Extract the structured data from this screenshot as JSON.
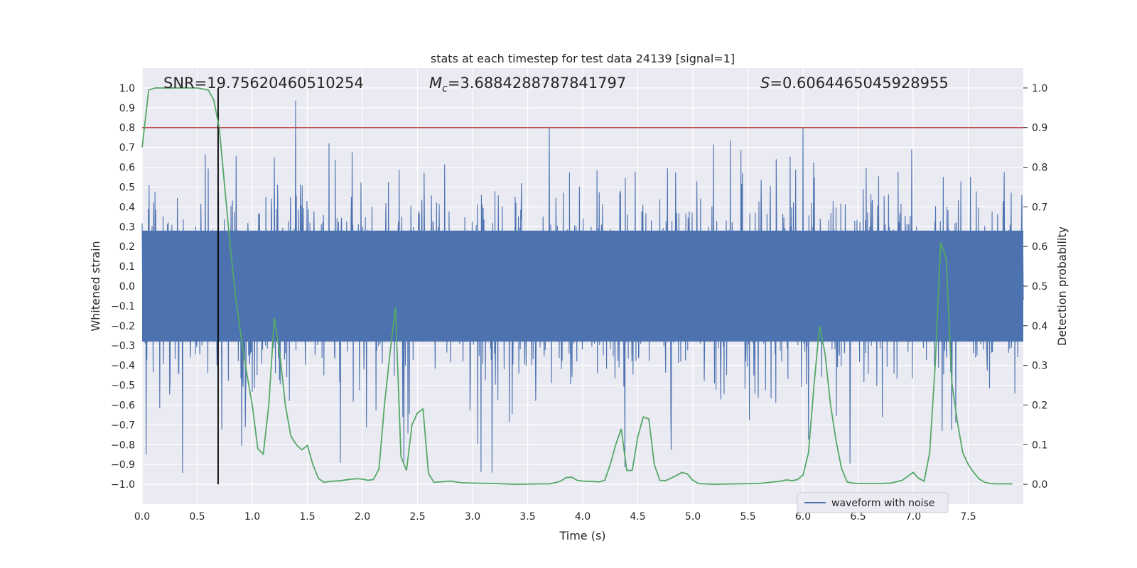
{
  "chart_data": {
    "type": "line",
    "title": "stats at each timestep for test data 24139 [signal=1]",
    "xlabel": "Time (s)",
    "ylabel": "Whitened strain",
    "ylabel_right": "Detection probability",
    "xlim": [
      0.0,
      8.0
    ],
    "ylim": [
      -1.1,
      1.1
    ],
    "ylim_right": [
      -0.05,
      1.05
    ],
    "x_ticks": [
      "0.0",
      "0.5",
      "1.0",
      "1.5",
      "2.0",
      "2.5",
      "3.0",
      "3.5",
      "4.0",
      "4.5",
      "5.0",
      "5.5",
      "6.0",
      "6.5",
      "7.0",
      "7.5"
    ],
    "y_ticks": [
      "1.0",
      "0.9",
      "0.8",
      "0.7",
      "0.6",
      "0.5",
      "0.4",
      "0.3",
      "0.2",
      "0.1",
      "0.0",
      "−0.1",
      "−0.2",
      "−0.3",
      "−0.4",
      "−0.5",
      "−0.6",
      "−0.7",
      "−0.8",
      "−0.9",
      "−1.0"
    ],
    "y_ticks_right": [
      "1.0",
      "0.9",
      "0.8",
      "0.7",
      "0.6",
      "0.5",
      "0.4",
      "0.3",
      "0.2",
      "0.1",
      "0.0"
    ],
    "grid": true,
    "background": "#eaeaf2",
    "annotations": {
      "snr": "SNR=19.75620460510254",
      "mc_symbol": "M",
      "mc_sub": "c",
      "mc_value": "=3.6884288787841797",
      "s_symbol": "S",
      "s_value": "=0.6064465045928955"
    },
    "legend": {
      "placement": "lower-right",
      "entries": [
        "waveform with noise"
      ]
    },
    "threshold_line": {
      "y_right": 0.9,
      "color": "#c44e52"
    },
    "marker_line": {
      "x": 0.69,
      "y_from": -1.0,
      "y_to": 1.0,
      "color": "#000000"
    },
    "waveform": {
      "name": "waveform with noise",
      "color": "#4c72b0",
      "typical_abs": 0.4,
      "peak_abs": 1.0,
      "duration": 8.0
    },
    "series": [
      {
        "name": "",
        "axis": "right",
        "color": "#55a868",
        "x": [
          0.0,
          0.06,
          0.12,
          0.2,
          0.3,
          0.4,
          0.5,
          0.6,
          0.65,
          0.7,
          0.75,
          0.8,
          0.85,
          0.9,
          0.95,
          1.0,
          1.05,
          1.1,
          1.15,
          1.2,
          1.25,
          1.3,
          1.35,
          1.4,
          1.45,
          1.5,
          1.55,
          1.6,
          1.65,
          1.7,
          1.8,
          1.9,
          1.95,
          2.0,
          2.05,
          2.1,
          2.15,
          2.2,
          2.25,
          2.3,
          2.35,
          2.4,
          2.45,
          2.5,
          2.55,
          2.6,
          2.65,
          2.7,
          2.8,
          2.9,
          3.0,
          3.2,
          3.4,
          3.6,
          3.7,
          3.75,
          3.8,
          3.85,
          3.9,
          3.95,
          4.0,
          4.1,
          4.15,
          4.2,
          4.25,
          4.3,
          4.35,
          4.4,
          4.45,
          4.5,
          4.55,
          4.6,
          4.65,
          4.7,
          4.75,
          4.8,
          4.85,
          4.9,
          4.95,
          5.0,
          5.05,
          5.1,
          5.2,
          5.4,
          5.6,
          5.7,
          5.8,
          5.85,
          5.9,
          5.95,
          6.0,
          6.05,
          6.1,
          6.15,
          6.2,
          6.25,
          6.3,
          6.35,
          6.4,
          6.45,
          6.5,
          6.55,
          6.6,
          6.7,
          6.8,
          6.9,
          7.0,
          7.05,
          7.1,
          7.15,
          7.2,
          7.25,
          7.3,
          7.35,
          7.4,
          7.45,
          7.5,
          7.55,
          7.6,
          7.65,
          7.7,
          7.75,
          7.8,
          7.9
        ],
        "values": [
          0.85,
          0.995,
          1.0,
          1.0,
          1.0,
          1.0,
          1.0,
          0.995,
          0.97,
          0.9,
          0.75,
          0.6,
          0.47,
          0.37,
          0.28,
          0.2,
          0.09,
          0.076,
          0.2,
          0.42,
          0.33,
          0.2,
          0.122,
          0.1,
          0.087,
          0.098,
          0.05,
          0.015,
          0.005,
          0.007,
          0.009,
          0.013,
          0.014,
          0.013,
          0.01,
          0.012,
          0.038,
          0.2,
          0.33,
          0.448,
          0.07,
          0.035,
          0.15,
          0.18,
          0.19,
          0.027,
          0.005,
          0.006,
          0.008,
          0.004,
          0.003,
          0.002,
          0.0,
          0.001,
          0.001,
          0.004,
          0.008,
          0.017,
          0.018,
          0.01,
          0.008,
          0.007,
          0.006,
          0.01,
          0.05,
          0.1,
          0.14,
          0.035,
          0.035,
          0.12,
          0.17,
          0.165,
          0.05,
          0.01,
          0.009,
          0.015,
          0.022,
          0.03,
          0.026,
          0.01,
          0.002,
          0.001,
          0.0,
          0.001,
          0.002,
          0.005,
          0.008,
          0.011,
          0.009,
          0.012,
          0.023,
          0.08,
          0.25,
          0.4,
          0.33,
          0.2,
          0.11,
          0.04,
          0.006,
          0.003,
          0.002,
          0.002,
          0.002,
          0.002,
          0.003,
          0.01,
          0.03,
          0.015,
          0.008,
          0.08,
          0.3,
          0.61,
          0.57,
          0.26,
          0.16,
          0.08,
          0.05,
          0.03,
          0.013,
          0.005,
          0.002,
          0.001,
          0.001,
          0.001
        ]
      }
    ]
  }
}
